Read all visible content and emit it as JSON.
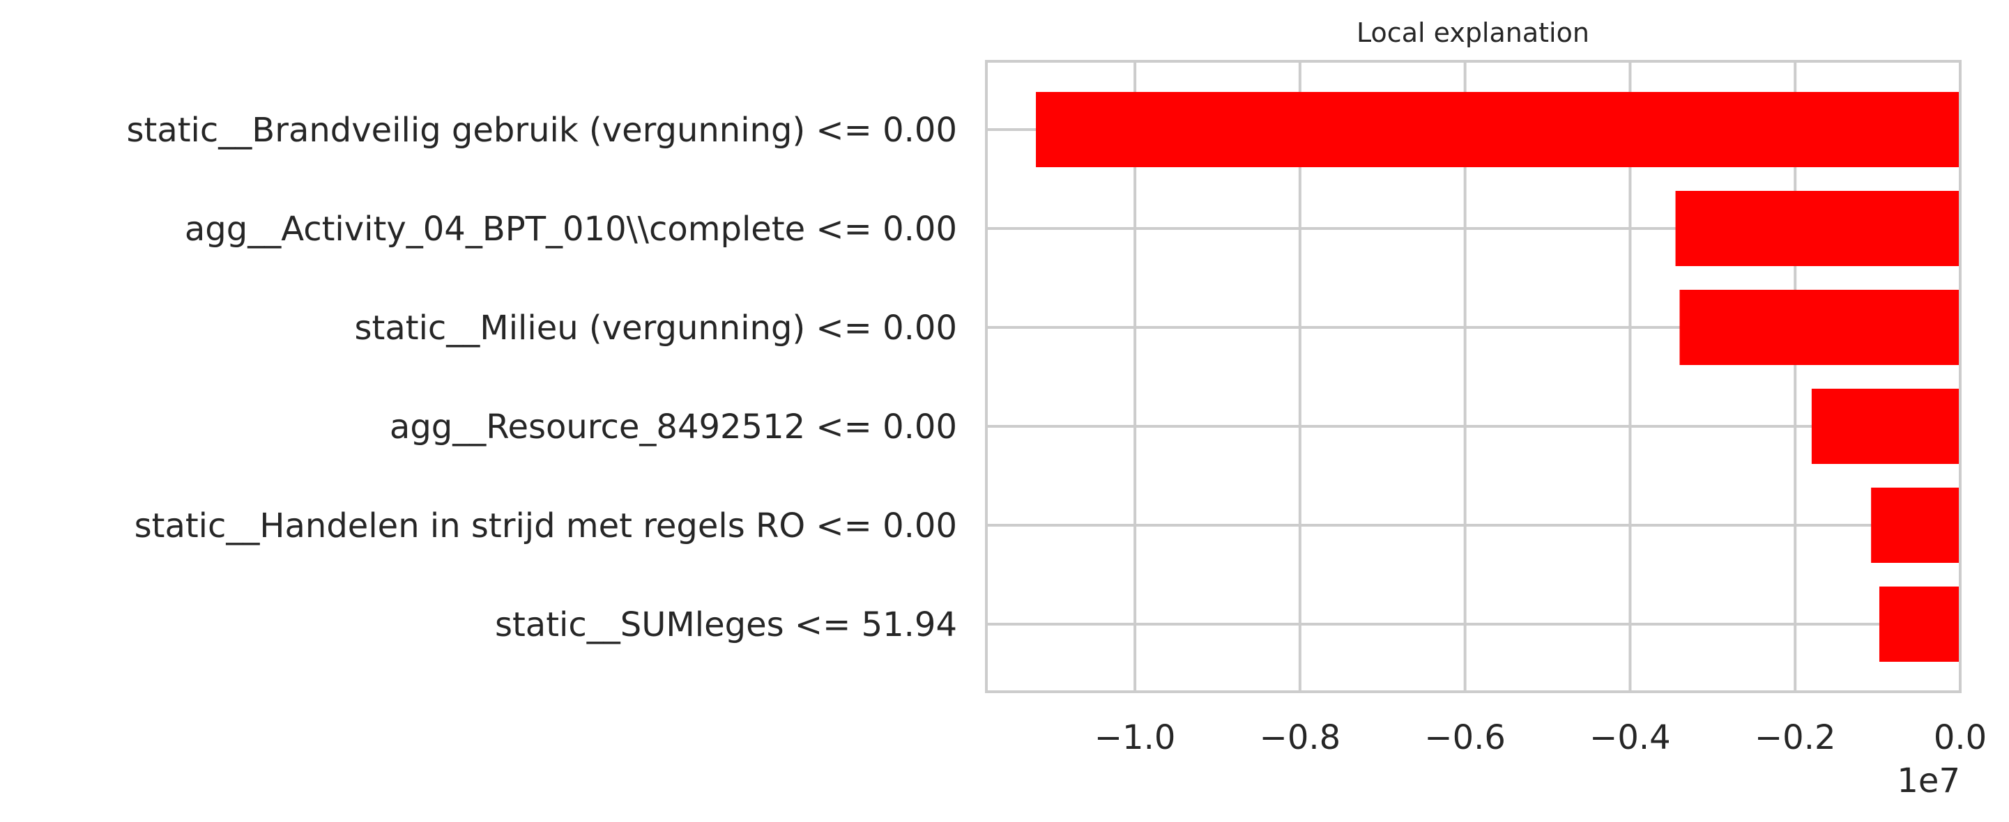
{
  "chart_data": {
    "type": "bar",
    "orientation": "horizontal",
    "title": "Local explanation",
    "categories": [
      "static__Brandveilig gebruik (vergunning) <= 0.00",
      "agg__Activity_04_BPT_010\\\\complete <= 0.00",
      "static__Milieu (vergunning) <= 0.00",
      "agg__Resource_8492512 <= 0.00",
      "static__Handelen in strijd met regels RO <= 0.00",
      "static__SUMleges <= 51.94"
    ],
    "values": [
      -11200000,
      -3450000,
      -3400000,
      -1800000,
      -1080000,
      -980000
    ],
    "xlim": [
      -11800000,
      0
    ],
    "xticks": [
      -10000000,
      -8000000,
      -6000000,
      -4000000,
      -2000000,
      0
    ],
    "xtick_labels": [
      "−1.0",
      "−0.8",
      "−0.6",
      "−0.4",
      "−0.2",
      "0.0"
    ],
    "offset_label": "1e7",
    "bar_color": "#ff0000",
    "grid": true,
    "xlabel": "",
    "ylabel": ""
  }
}
